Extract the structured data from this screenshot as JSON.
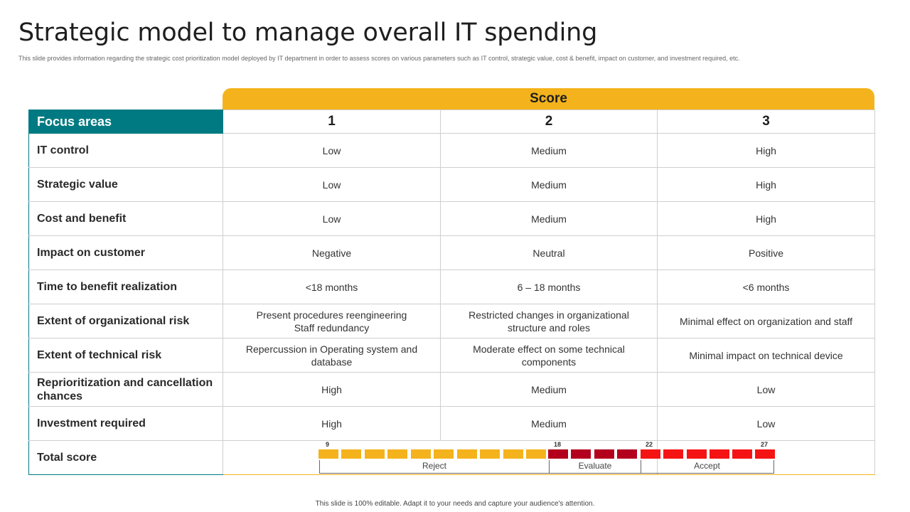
{
  "header": {
    "title": "Strategic model to manage overall IT spending",
    "subtitle": "This slide provides information regarding the strategic cost prioritization model deployed by IT department in order to assess scores on various parameters such as IT control, strategic value, cost & benefit, impact on customer, and investment required, etc."
  },
  "table": {
    "score_label": "Score",
    "focus_label": "Focus areas",
    "score_columns": [
      "1",
      "2",
      "3"
    ],
    "rows": [
      {
        "area": "IT control",
        "values": [
          "Low",
          "Medium",
          "High"
        ]
      },
      {
        "area": "Strategic value",
        "values": [
          "Low",
          "Medium",
          "High"
        ]
      },
      {
        "area": "Cost and benefit",
        "values": [
          "Low",
          "Medium",
          "High"
        ]
      },
      {
        "area": "Impact on customer",
        "values": [
          "Negative",
          "Neutral",
          "Positive"
        ]
      },
      {
        "area": "Time to benefit realization",
        "values": [
          "<18 months",
          "6 – 18 months",
          "<6 months"
        ]
      },
      {
        "area": "Extent of organizational risk",
        "values": [
          "Present procedures reengineering Staff redundancy",
          "Restricted changes in organizational structure and roles",
          "Minimal effect on organization and staff"
        ]
      },
      {
        "area": "Extent of technical risk",
        "values": [
          "Repercussion in Operating system and database",
          "Moderate effect on some technical components",
          "Minimal impact on technical device"
        ]
      },
      {
        "area": "Reprioritization and cancellation chances",
        "values": [
          "High",
          "Medium",
          "Low"
        ]
      },
      {
        "area": "Investment required",
        "values": [
          "High",
          "Medium",
          "Low"
        ]
      }
    ],
    "total_label": "Total score"
  },
  "score_meter": {
    "ticks": [
      "9",
      "18",
      "22",
      "27"
    ],
    "bands": [
      {
        "label": "Reject",
        "color": "#f4b31c"
      },
      {
        "label": "Evaluate",
        "color": "#b3001c"
      },
      {
        "label": "Accept",
        "color": "#f51414"
      }
    ]
  },
  "colors": {
    "accent_yellow": "#f4b31c",
    "accent_teal": "#007a82",
    "dark_red": "#b3001c",
    "red": "#f51414"
  },
  "footer": {
    "text": "This slide is 100% editable. Adapt it to your needs and capture your audience's attention."
  }
}
